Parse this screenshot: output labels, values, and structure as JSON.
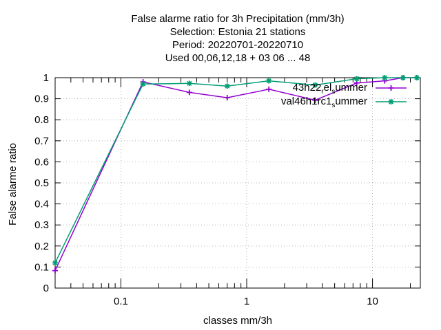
{
  "chart_data": {
    "type": "line",
    "title_lines": [
      "False alarme ratio  for 3h Precipitation (mm/3h)",
      "Selection: Estonia      21 stations",
      "Period: 20220701-20220710",
      "Used  00,06,12,18  + 03 06 ... 48"
    ],
    "xlabel": "classes mm/3h",
    "ylabel": "False alarme ratio",
    "x_scale": "log",
    "xlim": [
      0.03,
      24
    ],
    "ylim": [
      0,
      1
    ],
    "x_ticks": [
      {
        "value": 0.1,
        "label": "0.1"
      },
      {
        "value": 1,
        "label": "1"
      },
      {
        "value": 10,
        "label": "10"
      }
    ],
    "y_ticks": [
      {
        "value": 0,
        "label": "0"
      },
      {
        "value": 0.1,
        "label": "0.1"
      },
      {
        "value": 0.2,
        "label": "0.2"
      },
      {
        "value": 0.3,
        "label": "0.3"
      },
      {
        "value": 0.4,
        "label": "0.4"
      },
      {
        "value": 0.5,
        "label": "0.5"
      },
      {
        "value": 0.6,
        "label": "0.6"
      },
      {
        "value": 0.7,
        "label": "0.7"
      },
      {
        "value": 0.8,
        "label": "0.8"
      },
      {
        "value": 0.9,
        "label": "0.9"
      },
      {
        "value": 1,
        "label": "1"
      }
    ],
    "grid": true,
    "legend_position": "top-right",
    "series": [
      {
        "name_main": "43h22",
        "name_sub1": "r",
        "name_mid": "el",
        "name_sub2": "s",
        "name_end": "ummer",
        "color": "#9400d3",
        "marker": "plus",
        "x": [
          0.03,
          0.15,
          0.35,
          0.7,
          1.5,
          3.5,
          7.5,
          12.5,
          17.5,
          22.5
        ],
        "values": [
          0.083,
          0.98,
          0.93,
          0.905,
          0.945,
          0.893,
          0.975,
          0.985,
          1.0,
          1.0
        ]
      },
      {
        "name_main": "val46h1rc1",
        "name_sub1": "",
        "name_mid": "",
        "name_sub2": "s",
        "name_end": "ummer",
        "color": "#009e73",
        "marker": "star",
        "x": [
          0.03,
          0.15,
          0.35,
          0.7,
          1.5,
          3.5,
          7.5,
          12.5,
          17.5,
          22.5
        ],
        "values": [
          0.12,
          0.97,
          0.973,
          0.96,
          0.985,
          0.965,
          0.995,
          1.0,
          1.0,
          1.0
        ]
      }
    ]
  }
}
